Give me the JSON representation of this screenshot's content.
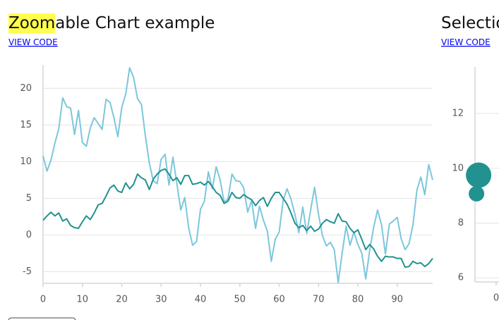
{
  "chart_data": [
    {
      "type": "line",
      "title": "Zoomable Chart example",
      "link": "VIEW CODE",
      "x": [
        0,
        1,
        2,
        3,
        4,
        5,
        6,
        7,
        8,
        9,
        10,
        11,
        12,
        13,
        14,
        15,
        16,
        17,
        18,
        19,
        20,
        21,
        22,
        23,
        24,
        25,
        26,
        27,
        28,
        29,
        30,
        31,
        32,
        33,
        34,
        35,
        36,
        37,
        38,
        39,
        40,
        41,
        42,
        43,
        44,
        45,
        46,
        47,
        48,
        49,
        50,
        51,
        52,
        53,
        54,
        55,
        56,
        57,
        58,
        59,
        60,
        61,
        62,
        63,
        64,
        65,
        66,
        67,
        68,
        69,
        70,
        71,
        72,
        73,
        74,
        75,
        76,
        77,
        78,
        79,
        80,
        81,
        82,
        83,
        84,
        85,
        86,
        87,
        88,
        89,
        90,
        91,
        92,
        93,
        94,
        95,
        96,
        97,
        98,
        99
      ],
      "series": [
        {
          "color": "#7cc7dc",
          "values": [
            10.8,
            8.7,
            10.2,
            12.5,
            14.5,
            18.7,
            17.5,
            17.3,
            13.7,
            17.0,
            12.6,
            12.1,
            14.6,
            16.0,
            15.2,
            14.4,
            18.5,
            18.1,
            16.0,
            13.4,
            17.4,
            19.2,
            22.8,
            21.5,
            18.6,
            17.8,
            13.5,
            9.8,
            7.4,
            7.0,
            10.3,
            11.0,
            6.8,
            10.6,
            7.0,
            3.4,
            5.1,
            1.0,
            -1.4,
            -0.9,
            3.5,
            4.6,
            8.6,
            6.3,
            9.3,
            7.5,
            4.5,
            4.9,
            8.3,
            7.4,
            7.3,
            6.4,
            3.1,
            4.7,
            0.9,
            3.9,
            2.0,
            0.5,
            -3.6,
            -0.6,
            0.4,
            4.7,
            6.3,
            4.9,
            2.8,
            0.3,
            3.8,
            0.2,
            3.4,
            6.5,
            2.8,
            -0.1,
            -1.5,
            -1.0,
            -2.0,
            -6.5,
            -2.5,
            1.2,
            -1.4,
            0.4,
            -1.3,
            -2.5,
            -6.0,
            -2.1,
            1.0,
            3.4,
            1.4,
            -2.6,
            1.5,
            1.9,
            2.4,
            -0.5,
            -2.0,
            -1.2,
            1.4,
            6.1,
            7.9,
            5.5,
            9.6,
            7.5
          ]
        },
        {
          "color": "#21928f",
          "values": [
            2.0,
            2.6,
            3.1,
            2.6,
            3.0,
            1.9,
            2.2,
            1.3,
            1.0,
            0.9,
            1.8,
            2.6,
            2.1,
            3.0,
            4.1,
            4.3,
            5.3,
            6.4,
            6.8,
            6.0,
            5.8,
            7.1,
            6.3,
            6.9,
            8.3,
            7.8,
            7.5,
            6.2,
            7.6,
            8.3,
            8.8,
            9.0,
            8.3,
            7.4,
            7.8,
            6.9,
            8.1,
            8.1,
            6.9,
            7.0,
            7.2,
            6.8,
            7.3,
            6.6,
            5.8,
            5.4,
            4.3,
            4.6,
            5.8,
            5.1,
            5.0,
            5.5,
            5.1,
            4.8,
            4.0,
            4.7,
            5.1,
            3.9,
            5.0,
            5.8,
            5.8,
            5.0,
            4.2,
            3.0,
            1.6,
            1.0,
            1.3,
            0.6,
            1.2,
            0.5,
            0.8,
            1.6,
            2.1,
            1.8,
            1.6,
            2.9,
            1.9,
            1.8,
            0.9,
            0.3,
            0.7,
            -0.6,
            -2.0,
            -1.3,
            -1.9,
            -2.9,
            -3.6,
            -2.9,
            -3.0,
            -3.0,
            -3.2,
            -3.2,
            -4.4,
            -4.3,
            -3.6,
            -3.9,
            -3.8,
            -4.3,
            -3.9,
            -3.2
          ]
        }
      ],
      "xlim": [
        0,
        99
      ],
      "xticks": [
        0,
        10,
        20,
        30,
        40,
        50,
        60,
        70,
        80,
        90
      ],
      "ylim": [
        -6.6,
        23.2
      ],
      "yticks": [
        -5,
        0,
        5,
        10,
        15,
        20
      ],
      "grid": true
    },
    {
      "type": "scatter",
      "title": "Selectio",
      "link": "VIEW CODE",
      "series": [
        {
          "color": "#21928f",
          "x": [
            -0.83,
            -0.93
          ],
          "values": [
            9.75,
            9.07
          ],
          "sizes": [
            18,
            11
          ]
        }
      ],
      "xlim": [
        -1,
        6
      ],
      "xticks": [
        0
      ],
      "ylim": [
        5.85,
        13.7
      ],
      "yticks": [
        6,
        8,
        10,
        12
      ],
      "grid": true
    }
  ]
}
